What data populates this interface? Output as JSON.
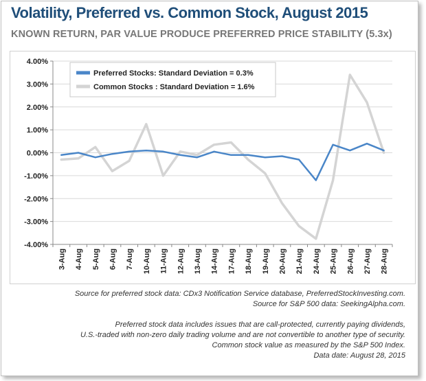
{
  "chart_data": {
    "type": "line",
    "title": "Volatility, Preferred vs. Common Stock, August 2015",
    "subtitle": "KNOWN RETURN, PAR VALUE PRODUCE PREFERRED PRICE STABILITY (5.3x)",
    "categories": [
      "3-Aug",
      "4-Aug",
      "5-Aug",
      "6-Aug",
      "7-Aug",
      "10-Aug",
      "11-Aug",
      "12-Aug",
      "13-Aug",
      "14-Aug",
      "17-Aug",
      "18-Aug",
      "19-Aug",
      "20-Aug",
      "21-Aug",
      "24-Aug",
      "25-Aug",
      "26-Aug",
      "27-Aug",
      "28-Aug"
    ],
    "y_tick_labels": [
      "4.00%",
      "3.00%",
      "2.00%",
      "1.00%",
      "0.00%",
      "-1.00%",
      "-2.00%",
      "-3.00%",
      "-4.00%"
    ],
    "ylim": [
      -4.0,
      4.0
    ],
    "grid": true,
    "legend_position": "top-left",
    "series": [
      {
        "name": "Preferred Stocks: Standard Deviation = 0.3%",
        "color": "#4a86c8",
        "values": [
          -0.1,
          0.0,
          -0.2,
          -0.05,
          0.05,
          0.1,
          0.05,
          -0.1,
          -0.2,
          0.05,
          -0.1,
          -0.1,
          -0.2,
          -0.15,
          -0.3,
          -1.2,
          0.35,
          0.1,
          0.4,
          0.1
        ]
      },
      {
        "name": "Common Stocks : Standard  Deviation = 1.6%",
        "color": "#d4d4d4",
        "values": [
          -0.3,
          -0.25,
          0.25,
          -0.8,
          -0.35,
          1.25,
          -1.0,
          0.05,
          -0.1,
          0.35,
          0.45,
          -0.3,
          -0.9,
          -2.2,
          -3.2,
          -3.75,
          -1.2,
          3.4,
          2.2,
          0.0
        ]
      }
    ]
  },
  "notes": {
    "source_preferred": "Source for preferred stock data: CDx3 Notification Service database, PreferredStockInvesting.com.",
    "source_sp500": "Source for S&P 500 data: SeekingAlpha.com.",
    "definition_1": "Preferred  stock data includes issues that are call-protected,  currently paying dividends,",
    "definition_2": "U.S.-traded with non-zero daily trading volume and are not convertible  to another type of security.",
    "definition_3": "Common stock value as measured by the S&P 500 Index.",
    "data_date": "Data date:  August 28, 2015"
  }
}
